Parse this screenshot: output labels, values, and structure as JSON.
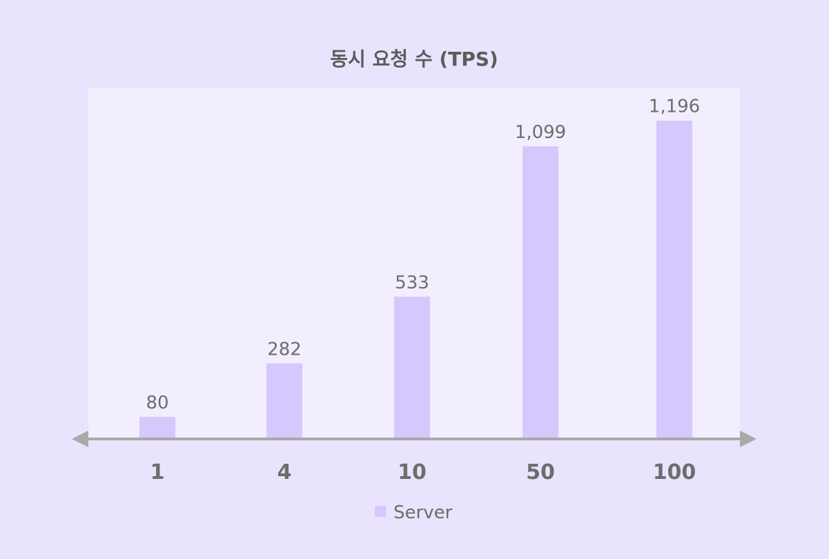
{
  "chart_data": {
    "type": "bar",
    "title": "동시 요청 수 (TPS)",
    "xlabel": "",
    "ylabel": "",
    "categories": [
      "1",
      "4",
      "10",
      "50",
      "100"
    ],
    "series": [
      {
        "name": "Server",
        "values": [
          80,
          282,
          533,
          1099,
          1196
        ],
        "labels": [
          "80",
          "282",
          "533",
          "1,099",
          "1,196"
        ]
      }
    ],
    "ylim": [
      0,
      1320
    ],
    "grid": false,
    "legend": "bottom-center",
    "colors": {
      "page_background": "#e9e3fd",
      "plot_background": "#f2eefd",
      "bar": "#d4c8fd",
      "axis": "#a9a9a9",
      "text": "#6d6d6d",
      "title": "#5c5c5c"
    }
  }
}
